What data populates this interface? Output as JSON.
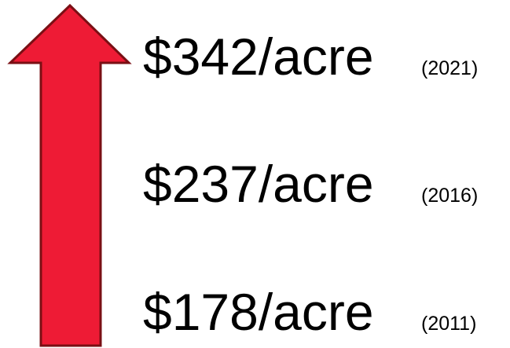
{
  "items": [
    {
      "value": "$342/acre",
      "year": "(2021)"
    },
    {
      "value": "$237/acre",
      "year": "(2016)"
    },
    {
      "value": "$178/acre",
      "year": "(2011)"
    }
  ]
}
